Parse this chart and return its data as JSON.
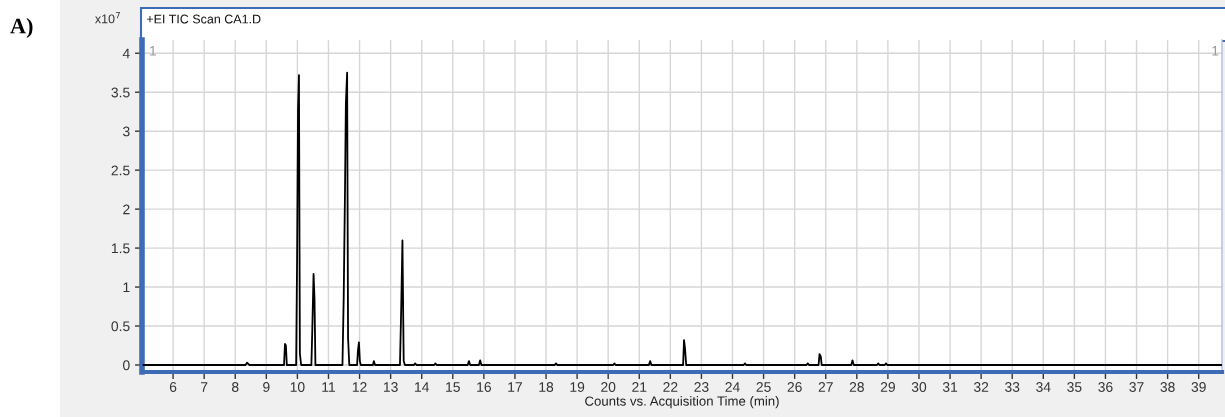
{
  "chart_data": {
    "type": "line",
    "title": "+EI TIC Scan CA1.D",
    "xlabel": "Counts vs. Acquisition Time (min)",
    "ylabel": "x10$^{7}$",
    "annotations": [
      "A)",
      "1",
      "1"
    ],
    "x": [
      5.05,
      8.33,
      8.38,
      8.45,
      9.57,
      9.6,
      9.63,
      9.66,
      9.96,
      9.99,
      10.02,
      10.05,
      10.08,
      10.12,
      10.45,
      10.48,
      10.52,
      10.55,
      10.58,
      11.45,
      11.49,
      11.53,
      11.56,
      11.6,
      11.63,
      11.67,
      11.92,
      11.95,
      11.98,
      12.01,
      12.04,
      12.43,
      12.46,
      12.5,
      13.3,
      13.34,
      13.38,
      13.42,
      13.46,
      13.75,
      13.79,
      13.83,
      14.4,
      14.44,
      14.48,
      15.48,
      15.52,
      15.56,
      15.84,
      15.88,
      15.92,
      18.28,
      18.32,
      18.36,
      20.16,
      20.2,
      20.24,
      21.31,
      21.35,
      21.39,
      22.41,
      22.44,
      22.47,
      22.51,
      24.36,
      24.4,
      24.44,
      26.38,
      26.42,
      26.46,
      26.77,
      26.8,
      26.84,
      26.87,
      27.82,
      27.86,
      27.9,
      28.65,
      28.69,
      28.73,
      28.9,
      28.94,
      28.98,
      39.74
    ],
    "series": [
      {
        "color": "#000000",
        "values": [
          0,
          0,
          0.03,
          0,
          0,
          0.27,
          0.25,
          0,
          0,
          1.36,
          3.28,
          3.72,
          0.15,
          0,
          0,
          0.46,
          1.17,
          0.86,
          0,
          0,
          0.87,
          2.17,
          3.36,
          3.75,
          0.35,
          0,
          0,
          0.19,
          0.29,
          0.05,
          0,
          0,
          0.05,
          0,
          0,
          0.72,
          1.6,
          0.05,
          0,
          0,
          0.02,
          0,
          0,
          0.02,
          0,
          0,
          0.05,
          0,
          0,
          0.06,
          0,
          0,
          0.02,
          0,
          0,
          0.02,
          0,
          0,
          0.05,
          0,
          0,
          0.32,
          0.22,
          0,
          0,
          0.02,
          0,
          0,
          0.02,
          0,
          0,
          0.14,
          0.11,
          0,
          0,
          0.06,
          0,
          0,
          0.02,
          0,
          0,
          0.02,
          0,
          0
        ]
      }
    ],
    "xlim": [
      5.0,
      39.75
    ],
    "ylim": [
      -0.09,
      4.17
    ],
    "xticks": [
      6,
      7,
      8,
      9,
      10,
      11,
      12,
      13,
      14,
      15,
      16,
      17,
      18,
      19,
      20,
      21,
      22,
      23,
      24,
      25,
      26,
      27,
      28,
      29,
      30,
      31,
      32,
      33,
      34,
      35,
      36,
      37,
      38,
      39
    ],
    "yticks": [
      0,
      0.5,
      1,
      1.5,
      2,
      2.5,
      3,
      3.5,
      4
    ],
    "grid": true,
    "line_style": "solid"
  }
}
